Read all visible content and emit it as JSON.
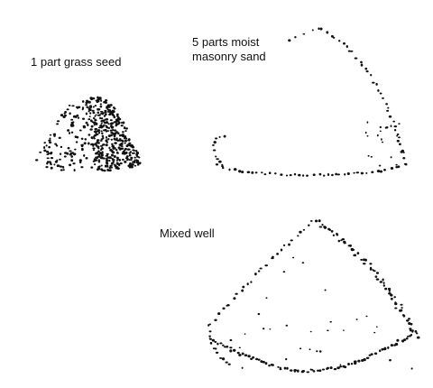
{
  "labels": {
    "grass_seed": "1 part grass seed",
    "sand_line1": "5 parts moist",
    "sand_line2": "masonry sand",
    "mixed": "Mixed well"
  },
  "colors": {
    "dots": "#111111",
    "background": "#ffffff"
  }
}
